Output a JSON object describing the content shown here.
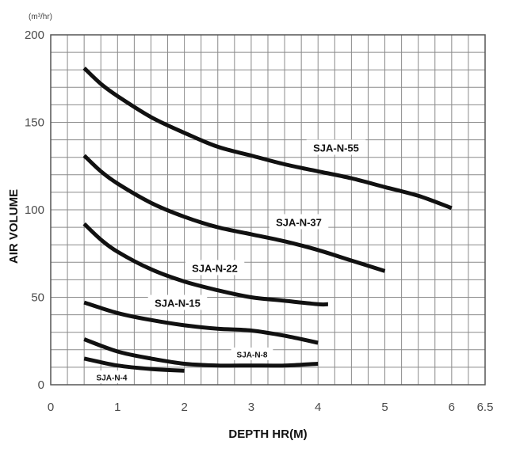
{
  "chart_data": {
    "type": "line",
    "unit": "(m³/hr)",
    "xlabel": "DEPTH HR(M)",
    "ylabel": "AIR VOLUME",
    "xlim": [
      0,
      6.5
    ],
    "ylim": [
      0,
      200
    ],
    "x_ticks": [
      0,
      1,
      2,
      3,
      4,
      5,
      6,
      6.5
    ],
    "y_ticks": [
      0,
      50,
      100,
      150,
      200
    ],
    "x_tick_labels": [
      "0",
      "1",
      "2",
      "3",
      "4",
      "5",
      "6",
      "6.5"
    ],
    "y_tick_labels": [
      "0",
      "50",
      "100",
      "150",
      "200"
    ],
    "grid": true,
    "series": [
      {
        "name": "SJA-N-55",
        "x": [
          0.5,
          0.75,
          1.0,
          1.5,
          2.0,
          2.5,
          3.0,
          3.5,
          4.0,
          4.5,
          5.0,
          5.5,
          6.0
        ],
        "y": [
          181,
          172,
          165,
          153,
          144,
          136,
          131,
          126,
          122,
          118,
          113,
          108,
          101
        ]
      },
      {
        "name": "SJA-N-37",
        "x": [
          0.5,
          0.75,
          1.0,
          1.5,
          2.0,
          2.5,
          3.0,
          3.5,
          4.0,
          4.5,
          5.0
        ],
        "y": [
          131,
          122,
          115,
          104,
          96,
          90,
          86,
          82,
          77,
          71,
          65
        ]
      },
      {
        "name": "SJA-N-22",
        "x": [
          0.5,
          0.75,
          1.0,
          1.5,
          2.0,
          2.5,
          3.0,
          3.5,
          4.0,
          4.15
        ],
        "y": [
          92,
          83,
          76,
          66,
          59,
          54,
          50,
          48,
          46,
          46
        ]
      },
      {
        "name": "SJA-N-15",
        "x": [
          0.5,
          1.0,
          1.5,
          2.0,
          2.5,
          3.0,
          3.5,
          4.0
        ],
        "y": [
          47,
          41,
          37,
          34,
          32,
          31,
          28,
          24
        ]
      },
      {
        "name": "SJA-N-8",
        "x": [
          0.5,
          1.0,
          1.5,
          2.0,
          2.5,
          3.0,
          3.5,
          4.0
        ],
        "y": [
          26,
          19,
          15,
          12,
          11,
          11,
          11,
          12
        ]
      },
      {
        "name": "SJA-N-4",
        "x": [
          0.5,
          1.0,
          1.5,
          2.0
        ],
        "y": [
          15,
          11,
          9,
          8
        ]
      }
    ]
  }
}
